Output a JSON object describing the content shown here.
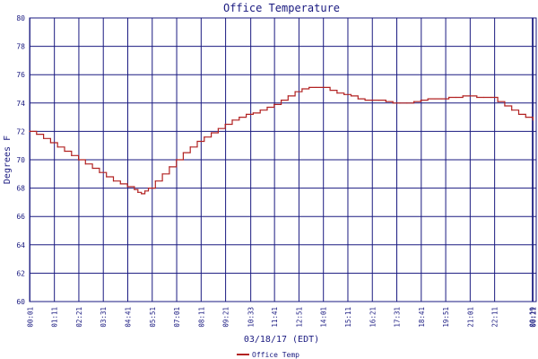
{
  "chart_data": {
    "type": "line",
    "title": "Office Temperature",
    "xlabel": "03/18/17 (EDT)",
    "ylabel": "Degrees F",
    "grid": true,
    "legend_position": "bottom-left",
    "ylim": [
      60,
      80
    ],
    "yticks": [
      "60",
      "62",
      "64",
      "66",
      "68",
      "70",
      "72",
      "74",
      "76",
      "78",
      "80"
    ],
    "xlim": [
      0,
      1450
    ],
    "xticks": [
      {
        "t": 1,
        "label": "00:01"
      },
      {
        "t": 71,
        "label": "01:11"
      },
      {
        "t": 141,
        "label": "02:21"
      },
      {
        "t": 211,
        "label": "03:31"
      },
      {
        "t": 281,
        "label": "04:41"
      },
      {
        "t": 351,
        "label": "05:51"
      },
      {
        "t": 421,
        "label": "07:01"
      },
      {
        "t": 491,
        "label": "08:11"
      },
      {
        "t": 561,
        "label": "09:21"
      },
      {
        "t": 633,
        "label": "10:33"
      },
      {
        "t": 701,
        "label": "11:41"
      },
      {
        "t": 771,
        "label": "12:51"
      },
      {
        "t": 841,
        "label": "14:01"
      },
      {
        "t": 911,
        "label": "15:11"
      },
      {
        "t": 981,
        "label": "16:21"
      },
      {
        "t": 1051,
        "label": "17:31"
      },
      {
        "t": 1121,
        "label": "18:41"
      },
      {
        "t": 1191,
        "label": "19:51"
      },
      {
        "t": 1261,
        "label": "21:01"
      },
      {
        "t": 1331,
        "label": "22:11"
      },
      {
        "t": 1439,
        "label": "00:19"
      },
      {
        "t": 1441,
        "label": "00:21"
      }
    ],
    "series": [
      {
        "name": "Office Temp",
        "color": "#b22222",
        "x": [
          0,
          20,
          40,
          60,
          80,
          100,
          120,
          140,
          160,
          180,
          200,
          220,
          240,
          260,
          280,
          300,
          310,
          320,
          330,
          340,
          360,
          380,
          400,
          420,
          440,
          460,
          480,
          500,
          520,
          540,
          560,
          580,
          600,
          620,
          640,
          660,
          680,
          700,
          720,
          740,
          760,
          780,
          800,
          820,
          840,
          860,
          880,
          900,
          920,
          940,
          960,
          980,
          1000,
          1020,
          1040,
          1060,
          1080,
          1100,
          1120,
          1140,
          1160,
          1180,
          1200,
          1220,
          1240,
          1260,
          1280,
          1300,
          1320,
          1340,
          1360,
          1380,
          1400,
          1420,
          1441
        ],
        "values": [
          72.0,
          71.8,
          71.5,
          71.2,
          70.9,
          70.6,
          70.3,
          70.0,
          69.7,
          69.4,
          69.1,
          68.8,
          68.5,
          68.3,
          68.1,
          67.9,
          67.7,
          67.6,
          67.8,
          68.0,
          68.5,
          69.0,
          69.5,
          70.0,
          70.5,
          70.9,
          71.3,
          71.6,
          71.9,
          72.2,
          72.5,
          72.8,
          73.0,
          73.2,
          73.3,
          73.5,
          73.7,
          73.9,
          74.2,
          74.5,
          74.8,
          75.0,
          75.1,
          75.1,
          75.1,
          74.9,
          74.7,
          74.6,
          74.5,
          74.3,
          74.2,
          74.2,
          74.2,
          74.1,
          74.0,
          74.0,
          74.0,
          74.1,
          74.2,
          74.3,
          74.3,
          74.3,
          74.4,
          74.4,
          74.5,
          74.5,
          74.4,
          74.4,
          74.4,
          74.1,
          73.8,
          73.5,
          73.2,
          73.0,
          72.8
        ]
      }
    ]
  }
}
